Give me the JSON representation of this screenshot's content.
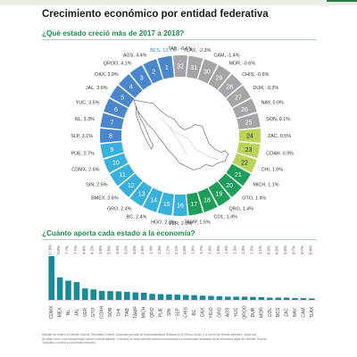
{
  "header": {
    "title": "Crecimiento económico por entidad federativa",
    "accent": "#1f8a4d"
  },
  "section1": {
    "title": "¿Qué estado creció más de 2017 a 2018?"
  },
  "section2": {
    "title": "¿Cuánto aporta cada estado a la economía?"
  },
  "footnote": [
    "Deloitte se refiere a Deloitte Touche Tohmatsu Limited, sociedad privada de responsabilidad limitada en el Reino Unido, y a su red de firmas miembro, cada una",
    "de ellas como una entidad legal única e independiente. Conozca en www.deloitte.com/mx/conozcanos la descripción detallada de la estructura legal de Deloitte Touche",
    "Tohmatsu Limited y sus firmas miembro."
  ],
  "colors": {
    "rank_1_8": "#4a86cc",
    "rank_9_16": "#39b1dd",
    "rank_17_21": "#1f9e59",
    "rank_22_24": "#b9d45a",
    "rank_25_32": "#a3a5a8",
    "bars": "#1a8a96"
  },
  "chart_data": [
    {
      "type": "donut",
      "title": "¿Qué estado creció más de 2017 a 2018?",
      "unit": "%",
      "segments": [
        {
          "rank": 1,
          "label": "BCS, 13.7%",
          "value": 13.7
        },
        {
          "rank": 2,
          "label": "AGS, 4.4%",
          "value": 4.4
        },
        {
          "rank": 3,
          "label": "QROO, 4.1%",
          "value": 4.1
        },
        {
          "rank": 4,
          "label": "OAX, 3.9%",
          "value": 3.9
        },
        {
          "rank": 5,
          "label": "JAL, 3.6%",
          "value": 3.6
        },
        {
          "rank": 6,
          "label": "YUC, 3.5%",
          "value": 3.5
        },
        {
          "rank": 7,
          "label": "NL, 3.3%",
          "value": 3.3
        },
        {
          "rank": 8,
          "label": "SLP, 3.1%",
          "value": 3.1
        },
        {
          "rank": 9,
          "label": "PUE, 2.7%",
          "value": 2.7
        },
        {
          "rank": 10,
          "label": "CDMX, 2.6%",
          "value": 2.6
        },
        {
          "rank": 11,
          "label": "SIN, 2.6%",
          "value": 2.6
        },
        {
          "rank": 12,
          "label": "BMEX, 2.6%",
          "value": 2.6
        },
        {
          "rank": 13,
          "label": "GRO, 2.4%",
          "value": 2.4
        },
        {
          "rank": 14,
          "label": "BC, 2.4%",
          "value": 2.4
        },
        {
          "rank": 15,
          "label": "HGO, 2.3%",
          "value": 2.3
        },
        {
          "rank": 16,
          "label": "VER, 2.0%",
          "value": 2.0
        },
        {
          "rank": 17,
          "label": "TAMP, 1.5%",
          "value": 1.5
        },
        {
          "rank": 18,
          "label": "COL, 1.4%",
          "value": 1.4
        },
        {
          "rank": 19,
          "label": "QRO, 1.4%",
          "value": 1.4
        },
        {
          "rank": 20,
          "label": "GTO, 1.4%",
          "value": 1.4
        },
        {
          "rank": 21,
          "label": "MICH, 1.1%",
          "value": 1.1
        },
        {
          "rank": 22,
          "label": "CHI, 1.0%",
          "value": 1.0
        },
        {
          "rank": 23,
          "label": "COAH, 0.9%",
          "value": 0.9
        },
        {
          "rank": 24,
          "label": "ZAC, 0.5%",
          "value": 0.5
        },
        {
          "rank": 25,
          "label": "SON, 0.1%",
          "value": 0.1
        },
        {
          "rank": 26,
          "label": "NAY, 0.0%",
          "value": 0.0
        },
        {
          "rank": 27,
          "label": "DUR, -0.3%",
          "value": -0.3
        },
        {
          "rank": 28,
          "label": "CHIS, -0.6%",
          "value": -0.6
        },
        {
          "rank": 29,
          "label": "MOR, -0.6%",
          "value": -0.6
        },
        {
          "rank": 30,
          "label": "CAM, -1.4%",
          "value": -1.4
        },
        {
          "rank": 31,
          "label": "TLAX, -2.3%",
          "value": -2.3
        },
        {
          "rank": 32,
          "label": "TAB, -6.6%",
          "value": -6.6
        }
      ]
    },
    {
      "type": "bar",
      "title": "¿Cuánto aporta cada estado a la economía?",
      "unit": "%",
      "categories": [
        "CDMX",
        "MEX",
        "NL",
        "JAL",
        "VER",
        "GTO",
        "COAH",
        "SON",
        "CHI",
        "TAB",
        "TAMP",
        "MICH",
        "QRO",
        "PUE",
        "SIN",
        "SLP",
        "CHIS",
        "BC",
        "OAX",
        "HGO",
        "GRO",
        "AGS",
        "YUC",
        "QROO",
        "DUR",
        "MOR",
        "COL",
        "BCS",
        "ZAC",
        "NAY",
        "CAM",
        "TLAX"
      ],
      "values": [
        17.5,
        9.0,
        7.7,
        7.1,
        4.6,
        4.2,
        3.6,
        3.5,
        3.4,
        3.2,
        3.0,
        2.9,
        2.4,
        2.3,
        2.2,
        2.1,
        2.0,
        1.9,
        1.7,
        1.6,
        1.5,
        1.3,
        1.3,
        1.3,
        1.2,
        1.1,
        0.9,
        0.9,
        0.9,
        0.7,
        0.7,
        0.6
      ],
      "value_labels": [
        "17.5%",
        "9.0%",
        "7.7%",
        "7.1%",
        "4.6%",
        "4.2%",
        "3.6%",
        "3.5%",
        "3.4%",
        "3.2%",
        "3.0%",
        "2.9%",
        "2.4%",
        "2.3%",
        "2.2%",
        "2.1%",
        "2.0%",
        "1.9%",
        "1.7%",
        "1.6%",
        "1.5%",
        "1.3%",
        "1.3%",
        "1.3%",
        "1.2%",
        "1.1%",
        "0.9%",
        "0.9%",
        "0.9%",
        "0.7%",
        "0.7%",
        "0.6%"
      ],
      "ylim": [
        0,
        17.5
      ]
    }
  ]
}
